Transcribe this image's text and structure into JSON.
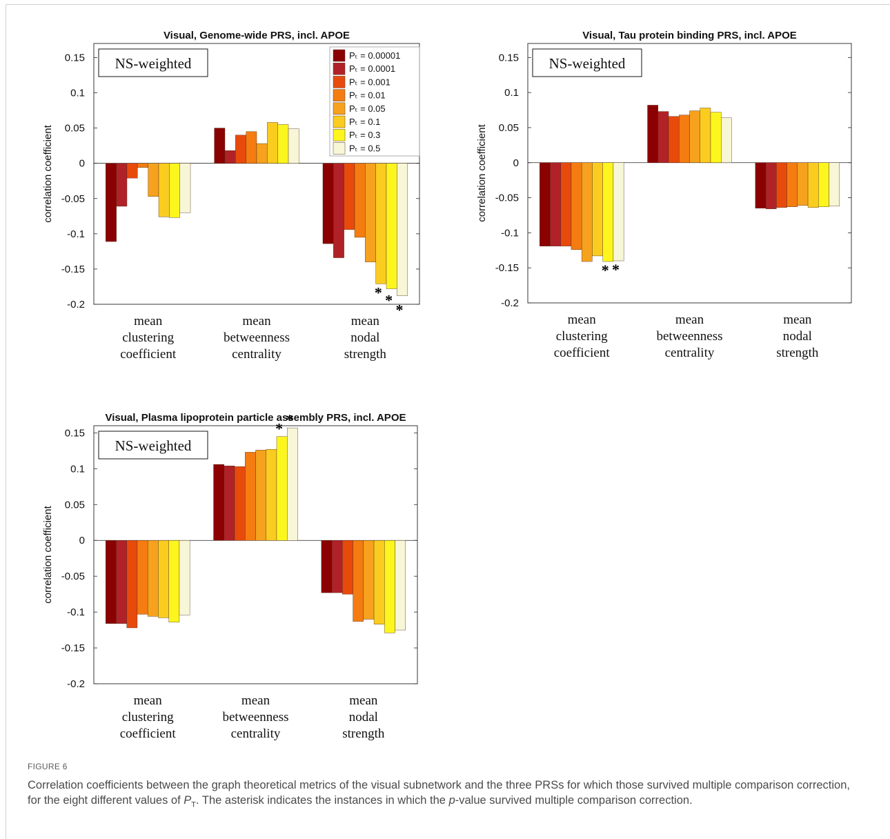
{
  "legend_labels": [
    "Pₜ = 0.00001",
    "Pₜ = 0.0001",
    "Pₜ = 0.001",
    "Pₜ = 0.01",
    "Pₜ = 0.05",
    "Pₜ = 0.1",
    "Pₜ = 0.3",
    "Pₜ = 0.5"
  ],
  "series_colors": [
    "#8b0000",
    "#b02227",
    "#e84a0c",
    "#f47c10",
    "#f6a21e",
    "#fbcc20",
    "#fcf61e",
    "#f7f6d6"
  ],
  "chart_data": [
    {
      "type": "bar",
      "title": "Visual, Genome-wide PRS, incl. APOE",
      "badge": "NS-weighted",
      "ylabel": "correlation coefficient",
      "ylim": [
        -0.2,
        0.17
      ],
      "yticks": [
        "0.15",
        "0.1",
        "0.05",
        "0",
        "-0.05",
        "-0.1",
        "-0.15",
        "-0.2"
      ],
      "ytick_values": [
        0.15,
        0.1,
        0.05,
        0,
        -0.05,
        -0.1,
        -0.15,
        -0.2
      ],
      "legend": "top-right",
      "categories": [
        [
          "mean",
          "clustering",
          "coefficient"
        ],
        [
          "mean",
          "betweenness",
          "centrality"
        ],
        [
          "mean",
          "nodal",
          "strength"
        ]
      ],
      "values": [
        [
          -0.111,
          -0.061,
          -0.021,
          -0.006,
          -0.047,
          -0.076,
          -0.077,
          -0.07
        ],
        [
          0.05,
          0.018,
          0.04,
          0.045,
          0.028,
          0.058,
          0.055,
          0.049
        ],
        [
          -0.114,
          -0.134,
          -0.094,
          -0.105,
          -0.14,
          -0.171,
          -0.178,
          -0.188
        ]
      ],
      "significant": [
        [
          2,
          5
        ],
        [
          2,
          6
        ],
        [
          2,
          7
        ]
      ],
      "asterisk": "*"
    },
    {
      "type": "bar",
      "title": "Visual, Tau protein binding PRS, incl. APOE",
      "badge": "NS-weighted",
      "ylabel": "correlation coefficient",
      "ylim": [
        -0.2,
        0.17
      ],
      "yticks": [
        "0.15",
        "0.1",
        "0.05",
        "0",
        "-0.05",
        "-0.1",
        "-0.15",
        "-0.2"
      ],
      "ytick_values": [
        0.15,
        0.1,
        0.05,
        0,
        -0.05,
        -0.1,
        -0.15,
        -0.2
      ],
      "categories": [
        [
          "mean",
          "clustering",
          "coefficient"
        ],
        [
          "mean",
          "betweenness",
          "centrality"
        ],
        [
          "mean",
          "nodal",
          "strength"
        ]
      ],
      "values": [
        [
          -0.119,
          -0.119,
          -0.119,
          -0.124,
          -0.141,
          -0.133,
          -0.141,
          -0.14
        ],
        [
          0.082,
          0.073,
          0.066,
          0.068,
          0.074,
          0.078,
          0.072,
          0.064
        ],
        [
          -0.065,
          -0.066,
          -0.064,
          -0.063,
          -0.061,
          -0.064,
          -0.063,
          -0.062
        ]
      ],
      "significant": [
        [
          0,
          6
        ],
        [
          0,
          7
        ]
      ],
      "asterisk": "*"
    },
    {
      "type": "bar",
      "title": "Visual, Plasma lipoprotein particle assembly PRS, incl. APOE",
      "badge": "NS-weighted",
      "ylabel": "correlation coefficient",
      "ylim": [
        -0.2,
        0.16
      ],
      "yticks": [
        "0.15",
        "0.1",
        "0.05",
        "0",
        "-0.05",
        "-0.1",
        "-0.15",
        "-0.2"
      ],
      "ytick_values": [
        0.15,
        0.1,
        0.05,
        0,
        -0.05,
        -0.1,
        -0.15,
        -0.2
      ],
      "categories": [
        [
          "mean",
          "clustering",
          "coefficient"
        ],
        [
          "mean",
          "betweenness",
          "centrality"
        ],
        [
          "mean",
          "nodal",
          "strength"
        ]
      ],
      "values": [
        [
          -0.116,
          -0.116,
          -0.122,
          -0.103,
          -0.106,
          -0.108,
          -0.114,
          -0.104
        ],
        [
          0.106,
          0.104,
          0.103,
          0.123,
          0.126,
          0.127,
          0.145,
          0.157
        ],
        [
          -0.073,
          -0.073,
          -0.075,
          -0.113,
          -0.11,
          -0.117,
          -0.129,
          -0.125
        ]
      ],
      "significant": [
        [
          1,
          6
        ],
        [
          1,
          7
        ]
      ],
      "asterisk": "*"
    }
  ],
  "caption": {
    "label": "FIGURE 6",
    "text_before": "Correlation coefficients between the graph theoretical metrics of the visual subnetwork and the three PRSs for which those survived multiple comparison correction, for the eight different values of ",
    "pt_main": "P",
    "pt_sub": "T",
    "text_mid": ". The asterisk indicates the instances in which the ",
    "p_italic": "p",
    "text_after": "-value survived multiple comparison correction."
  }
}
